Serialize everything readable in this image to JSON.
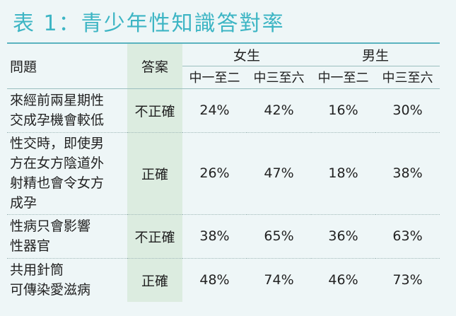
{
  "title": "表 1：青少年性知識答對率",
  "header": {
    "question": "問題",
    "answer": "答案",
    "female": "女生",
    "male": "男生",
    "f_group1": "中一至二",
    "f_group2": "中三至六",
    "m_group1": "中一至二",
    "m_group2": "中三至六"
  },
  "rows": [
    {
      "question_lines": [
        "來經前兩星期性",
        "交成孕機會較低"
      ],
      "answer": "不正確",
      "values": [
        "24%",
        "42%",
        "16%",
        "30%"
      ]
    },
    {
      "question_lines": [
        "性交時，即使男",
        "方在女方陰道外",
        "射精也會令女方",
        "成孕"
      ],
      "answer": "正確",
      "values": [
        "26%",
        "47%",
        "18%",
        "38%"
      ]
    },
    {
      "question_lines": [
        "性病只會影響",
        "性器官"
      ],
      "answer": "不正確",
      "values": [
        "38%",
        "65%",
        "36%",
        "63%"
      ]
    },
    {
      "question_lines": [
        "共用針筒",
        "可傳染愛滋病"
      ],
      "answer": "正確",
      "values": [
        "48%",
        "74%",
        "46%",
        "73%"
      ]
    }
  ]
}
